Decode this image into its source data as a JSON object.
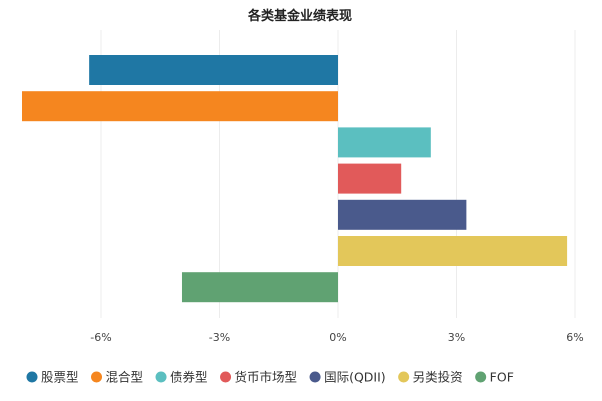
{
  "chart_data": {
    "type": "bar",
    "orientation": "horizontal",
    "title": "各类基金业绩表现",
    "xlabel": "",
    "ylabel": "",
    "xlim": [
      -8,
      6
    ],
    "ticks": [
      {
        "value": -6,
        "label": "-6%"
      },
      {
        "value": -3,
        "label": "-3%"
      },
      {
        "value": 0,
        "label": "0%"
      },
      {
        "value": 3,
        "label": "3%"
      },
      {
        "value": 6,
        "label": "6%"
      }
    ],
    "grid": true,
    "legend_position": "bottom",
    "series": [
      {
        "name": "股票型",
        "value": -6.3,
        "color": "#1f77a4"
      },
      {
        "name": "混合型",
        "value": -8.0,
        "color": "#f5861f"
      },
      {
        "name": "债券型",
        "value": 2.35,
        "color": "#5bbfc0"
      },
      {
        "name": "货币市场型",
        "value": 1.6,
        "color": "#e15a5a"
      },
      {
        "name": "国际(QDII)",
        "value": 3.25,
        "color": "#4a5a8c"
      },
      {
        "name": "另类投资",
        "value": 5.8,
        "color": "#e3c75a"
      },
      {
        "name": "FOF",
        "value": -3.95,
        "color": "#60a272"
      }
    ]
  }
}
